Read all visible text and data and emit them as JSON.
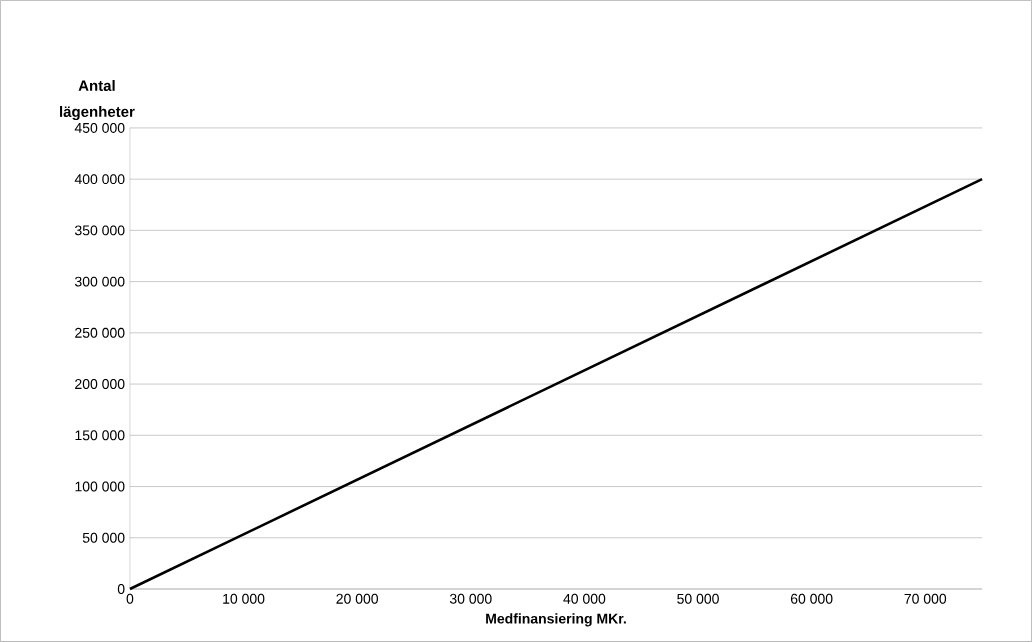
{
  "chart_data": {
    "type": "line",
    "xlabel": "Medfinansiering MKr.",
    "ylabel": "Antal lägenheter",
    "x": [
      0,
      75000
    ],
    "values": [
      0,
      400000
    ],
    "color": "#000000",
    "xlim": [
      0,
      75000
    ],
    "ylim": [
      0,
      450000
    ],
    "xticks": [
      0,
      {
        "value": 10000,
        "label": "10 000"
      },
      {
        "value": 20000,
        "label": "20 000"
      },
      {
        "value": 30000,
        "label": "30 000"
      },
      {
        "value": 40000,
        "label": "40 000"
      },
      {
        "value": 50000,
        "label": "50 000"
      },
      {
        "value": 60000,
        "label": "60 000"
      },
      {
        "value": 70000,
        "label": "70 000"
      }
    ],
    "yticks": [
      0,
      {
        "value": 50000,
        "label": "50 000"
      },
      {
        "value": 100000,
        "label": "100 000"
      },
      {
        "value": 150000,
        "label": "150 000"
      },
      {
        "value": 200000,
        "label": "200 000"
      },
      {
        "value": 250000,
        "label": "250 000"
      },
      {
        "value": 300000,
        "label": "300 000"
      },
      {
        "value": 350000,
        "label": "350 000"
      },
      {
        "value": 400000,
        "label": "400 000"
      },
      {
        "value": 450000,
        "label": "450 000"
      }
    ],
    "grid": "y"
  }
}
